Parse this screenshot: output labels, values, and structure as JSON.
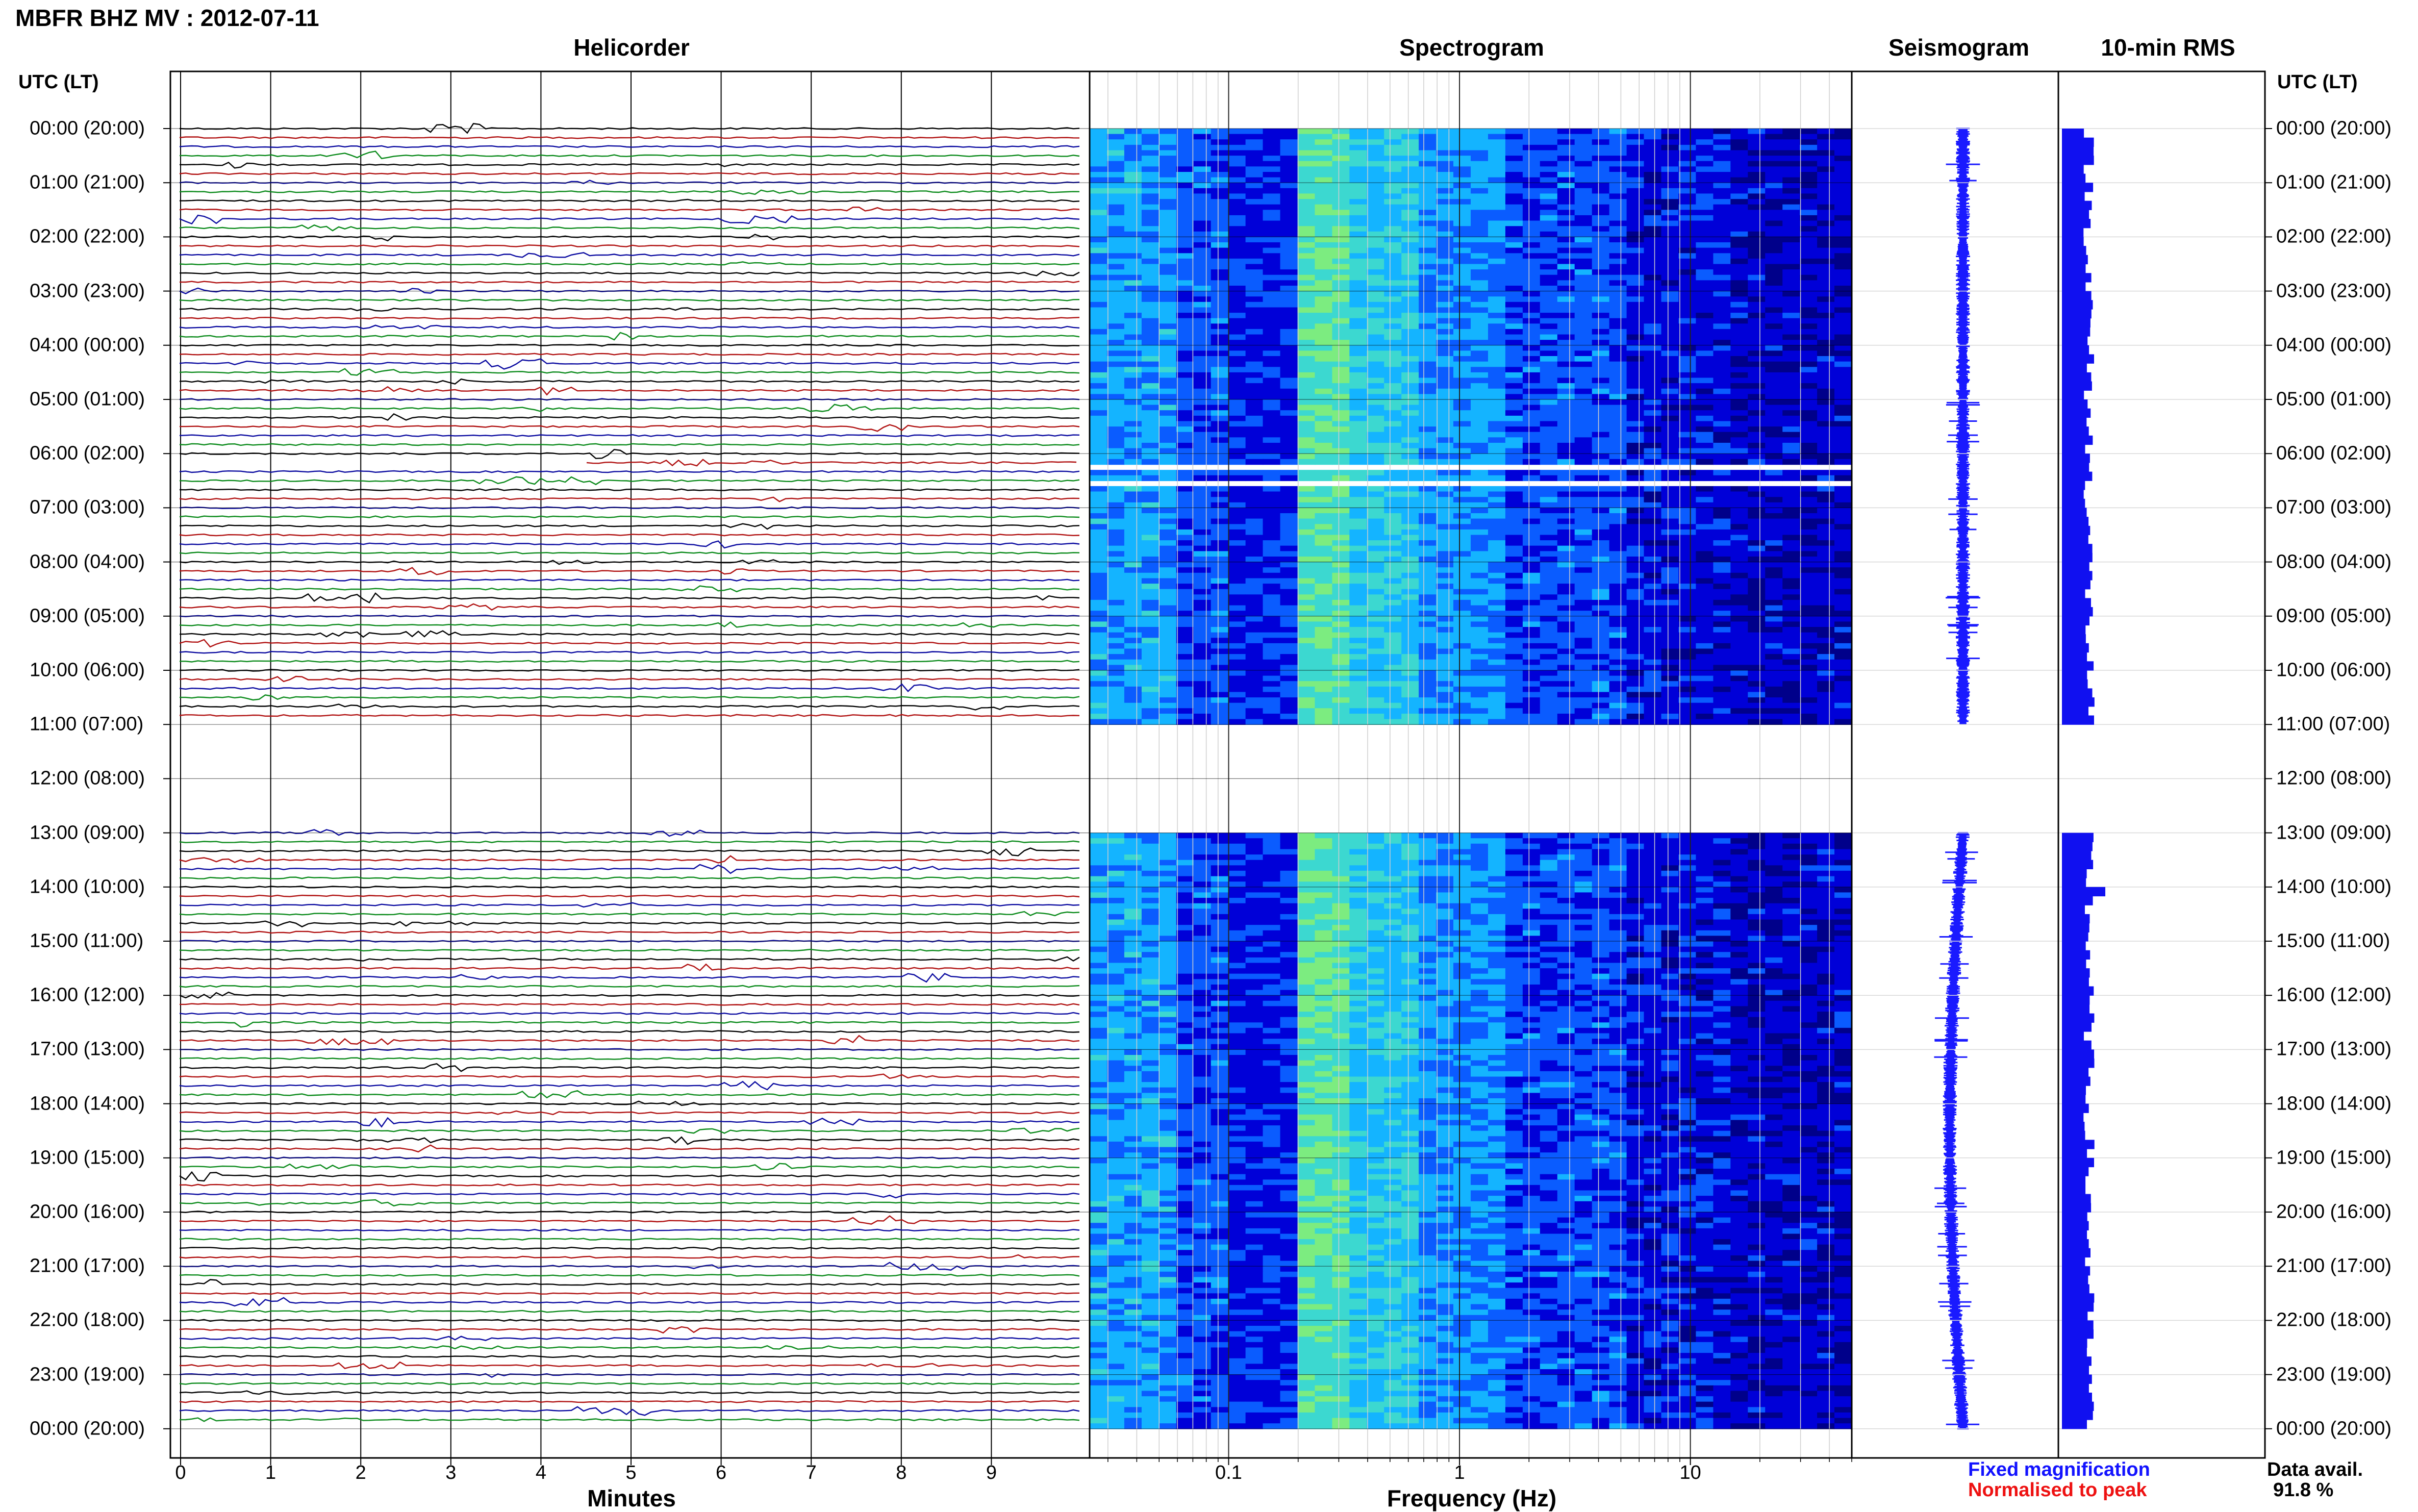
{
  "header": {
    "title": "MBFR BHZ MV : 2012-07-11",
    "panels": {
      "helicorder": "Helicorder",
      "spectrogram": "Spectrogram",
      "seismogram": "Seismogram",
      "rms": "10-min RMS"
    },
    "utc_label": "UTC (LT)"
  },
  "time_labels": [
    "00:00 (20:00)",
    "01:00 (21:00)",
    "02:00 (22:00)",
    "03:00 (23:00)",
    "04:00 (00:00)",
    "05:00 (01:00)",
    "06:00 (02:00)",
    "07:00 (03:00)",
    "08:00 (04:00)",
    "09:00 (05:00)",
    "10:00 (06:00)",
    "11:00 (07:00)",
    "12:00 (08:00)",
    "13:00 (09:00)",
    "14:00 (10:00)",
    "15:00 (11:00)",
    "16:00 (12:00)",
    "17:00 (13:00)",
    "18:00 (14:00)",
    "19:00 (15:00)",
    "20:00 (16:00)",
    "21:00 (17:00)",
    "22:00 (18:00)",
    "23:00 (19:00)",
    "00:00 (20:00)"
  ],
  "chart_data": [
    {
      "type": "line",
      "name": "Helicorder",
      "x_ticks": [
        "0",
        "1",
        "2",
        "3",
        "4",
        "5",
        "6",
        "7",
        "8",
        "9"
      ],
      "xlabel": "Minutes",
      "xlim": [
        0,
        10
      ],
      "trace_colors": [
        "#000000",
        "#b01010",
        "#0a0aa0",
        "#0a8a1a"
      ],
      "traces_per_hour": 6,
      "data_gap_hours": [
        11,
        13
      ]
    },
    {
      "type": "heatmap",
      "name": "Spectrogram",
      "x_ticks": [
        "0.1",
        "1",
        "10"
      ],
      "xlabel": "Frequency (Hz)",
      "x_scale": "log",
      "colormap": [
        "#00008a",
        "#0000d8",
        "#0a5cff",
        "#14b4ff",
        "#3cd8d0",
        "#7cec80"
      ],
      "data_gap_hours": [
        11,
        13
      ],
      "missing_rows_hours": [
        6.3,
        6.6
      ]
    },
    {
      "type": "line",
      "name": "Seismogram",
      "color": "#1a1aff",
      "data_gap_hours": [
        11,
        13
      ]
    },
    {
      "type": "bar",
      "name": "10-min RMS",
      "color": "#1010f0",
      "data_gap_hours": [
        11,
        13
      ]
    }
  ],
  "legend": {
    "fixed": "Fixed magnification",
    "normalised": "Normalised to peak",
    "fixed_color": "#1212ff",
    "normalised_color": "#ee1111"
  },
  "availability": {
    "label": "Data avail.",
    "value": "91.8 %"
  }
}
